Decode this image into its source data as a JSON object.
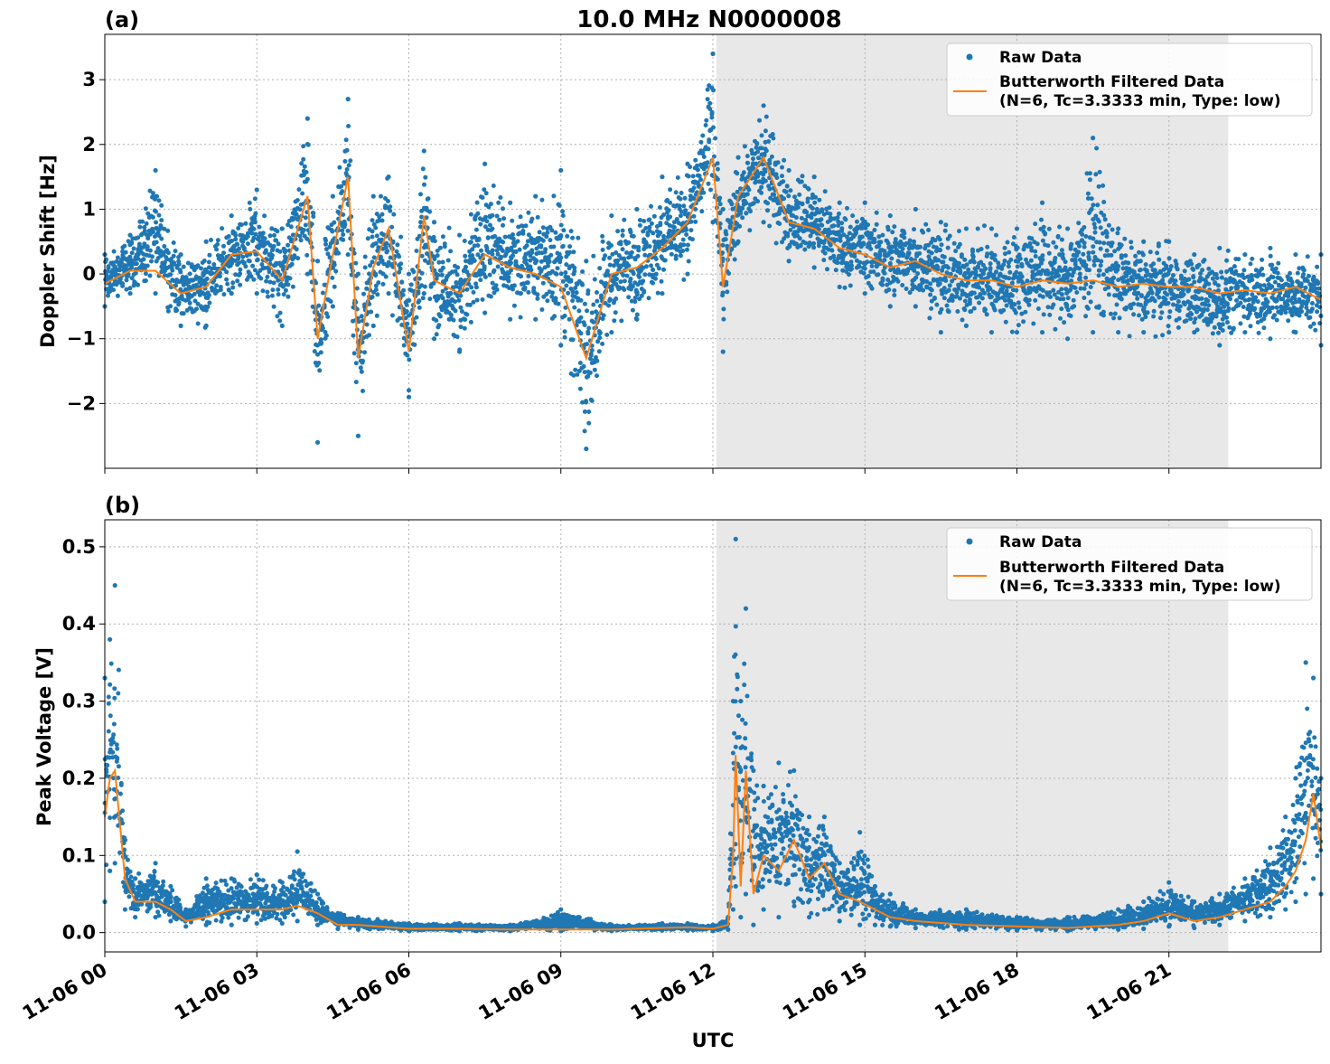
{
  "figure": {
    "title": "10.0 MHz N0000008",
    "xlabel": "UTC",
    "x_ticks": [
      "11-06 00",
      "11-06 03",
      "11-06 06",
      "11-06 09",
      "11-06 12",
      "11-06 15",
      "11-06 18",
      "11-06 21"
    ],
    "shaded_region_hours": [
      12.07,
      22.17
    ],
    "colors": {
      "raw": "#1f77b4",
      "filtered": "#ff7f0e",
      "shade": "#e8e8e8",
      "grid": "#b0b0b0"
    }
  },
  "legend": {
    "raw": "Raw Data",
    "filtered_line1": "Butterworth Filtered Data",
    "filtered_line2": "(N=6, Tc=3.3333 min, Type: low)"
  },
  "chart_data": [
    {
      "type": "scatter",
      "panel_label": "(a)",
      "ylabel": "Doppler Shift [Hz]",
      "x_unit": "hours UTC since 11-06 00",
      "xlim": [
        0,
        24
      ],
      "ylim": [
        -3.0,
        3.7
      ],
      "yticks": [
        -2,
        -1,
        0,
        1,
        2,
        3
      ],
      "ytick_labels": [
        "−2",
        "−1",
        "0",
        "1",
        "2",
        "3"
      ],
      "legend_position": "top-right",
      "grid": true,
      "series": [
        {
          "name": "Butterworth Filtered Data",
          "x": [
            0,
            0.5,
            1,
            1.5,
            2,
            2.5,
            3,
            3.5,
            4,
            4.2,
            4.5,
            4.8,
            5,
            5.3,
            5.6,
            6,
            6.3,
            6.5,
            7,
            7.5,
            8,
            8.5,
            9,
            9.5,
            10,
            10.5,
            11,
            11.5,
            12,
            12.2,
            12.5,
            13,
            13.5,
            14,
            14.5,
            15,
            15.5,
            16,
            16.5,
            17,
            17.5,
            18,
            18.5,
            19,
            19.5,
            20,
            20.5,
            21,
            21.5,
            22,
            22.5,
            23,
            23.5,
            24
          ],
          "y": [
            -0.15,
            0.05,
            0.05,
            -0.3,
            -0.2,
            0.3,
            0.35,
            -0.1,
            1.2,
            -1.0,
            0.3,
            1.5,
            -1.3,
            0.1,
            0.7,
            -1.2,
            0.9,
            -0.1,
            -0.3,
            0.3,
            0.1,
            0.0,
            -0.2,
            -1.3,
            0.0,
            0.1,
            0.4,
            0.8,
            1.8,
            -0.2,
            1.2,
            1.8,
            0.8,
            0.7,
            0.4,
            0.3,
            0.1,
            0.2,
            0.0,
            -0.1,
            -0.1,
            -0.2,
            -0.1,
            -0.15,
            -0.1,
            -0.2,
            -0.15,
            -0.2,
            -0.2,
            -0.3,
            -0.25,
            -0.3,
            -0.2,
            -0.4
          ]
        },
        {
          "name": "Raw Data",
          "x": [
            0,
            0.5,
            1,
            1.5,
            2,
            2.5,
            3,
            3.5,
            4,
            4.2,
            4.5,
            4.8,
            5,
            5.3,
            5.6,
            6,
            6.3,
            6.5,
            7,
            7.5,
            8,
            8.5,
            9,
            9.5,
            10,
            10.5,
            11,
            11.5,
            12,
            12.2,
            12.5,
            13,
            13.5,
            14,
            14.5,
            15,
            15.5,
            16,
            16.5,
            17,
            17.5,
            18,
            18.5,
            19,
            19.5,
            20,
            20.5,
            21,
            21.5,
            22,
            22.5,
            23,
            23.5,
            24
          ],
          "y_min": [
            -0.5,
            -0.3,
            -0.3,
            -0.8,
            -0.8,
            -0.3,
            -0.3,
            -0.8,
            0.0,
            -2.6,
            -0.5,
            0.3,
            -2.5,
            -0.8,
            -0.3,
            -1.9,
            -0.3,
            -1.0,
            -1.2,
            -0.6,
            -0.7,
            -0.7,
            -1.1,
            -2.7,
            -0.9,
            -0.7,
            -0.3,
            0.0,
            0.8,
            -1.2,
            0.5,
            0.8,
            0.2,
            0.1,
            -0.2,
            -0.3,
            -0.5,
            -0.5,
            -0.9,
            -0.8,
            -0.9,
            -0.9,
            -0.9,
            -1.0,
            -0.9,
            -0.9,
            -0.9,
            -0.9,
            -0.9,
            -1.1,
            -0.9,
            -1.0,
            -0.9,
            -1.1
          ],
          "y_max": [
            0.3,
            0.6,
            1.6,
            0.3,
            0.5,
            0.9,
            1.3,
            0.7,
            2.4,
            0.2,
            1.2,
            2.7,
            0.0,
            1.2,
            1.5,
            0.0,
            1.9,
            0.8,
            0.6,
            1.7,
            1.1,
            1.2,
            1.6,
            0.2,
            0.9,
            1.0,
            1.5,
            1.7,
            3.4,
            1.0,
            1.8,
            2.6,
            1.6,
            1.5,
            1.1,
            1.1,
            0.9,
            1.0,
            0.8,
            0.7,
            0.7,
            0.7,
            1.1,
            0.7,
            2.1,
            0.7,
            0.5,
            0.5,
            0.3,
            0.4,
            0.3,
            0.4,
            0.3,
            0.3
          ]
        }
      ]
    },
    {
      "type": "scatter",
      "panel_label": "(b)",
      "ylabel": "Peak Voltage [V]",
      "x_unit": "hours UTC since 11-06 00",
      "xlim": [
        0,
        24
      ],
      "ylim": [
        -0.025,
        0.535
      ],
      "yticks": [
        0.0,
        0.1,
        0.2,
        0.3,
        0.4,
        0.5
      ],
      "ytick_labels": [
        "0.0",
        "0.1",
        "0.2",
        "0.3",
        "0.4",
        "0.5"
      ],
      "legend_position": "top-right",
      "grid": true,
      "series": [
        {
          "name": "Butterworth Filtered Data",
          "x": [
            0,
            0.1,
            0.2,
            0.4,
            0.6,
            1,
            1.3,
            1.6,
            2,
            2.5,
            3,
            3.5,
            3.8,
            4.2,
            4.6,
            5,
            6,
            7,
            8,
            9,
            10,
            11,
            11.5,
            12,
            12.3,
            12.4,
            12.45,
            12.55,
            12.65,
            12.8,
            13,
            13.3,
            13.6,
            13.9,
            14.2,
            14.5,
            14.9,
            15.2,
            15.5,
            16,
            17,
            18,
            19,
            20,
            20.5,
            21,
            21.5,
            22,
            22.5,
            23,
            23.3,
            23.5,
            23.7,
            23.85,
            24
          ],
          "y": [
            0.15,
            0.2,
            0.21,
            0.07,
            0.04,
            0.04,
            0.03,
            0.015,
            0.02,
            0.03,
            0.03,
            0.03,
            0.035,
            0.025,
            0.01,
            0.01,
            0.005,
            0.005,
            0.004,
            0.004,
            0.004,
            0.006,
            0.007,
            0.005,
            0.01,
            0.1,
            0.23,
            0.06,
            0.21,
            0.05,
            0.1,
            0.08,
            0.12,
            0.07,
            0.09,
            0.05,
            0.04,
            0.03,
            0.02,
            0.015,
            0.01,
            0.008,
            0.006,
            0.01,
            0.015,
            0.025,
            0.015,
            0.02,
            0.03,
            0.04,
            0.06,
            0.08,
            0.12,
            0.18,
            0.11
          ]
        },
        {
          "name": "Raw Data",
          "x": [
            0,
            0.1,
            0.2,
            0.4,
            0.6,
            1,
            1.3,
            1.6,
            2,
            2.5,
            3,
            3.5,
            3.8,
            4.2,
            4.6,
            5,
            6,
            7,
            8,
            9,
            10,
            11,
            11.5,
            12,
            12.3,
            12.4,
            12.45,
            12.55,
            12.65,
            12.8,
            13,
            13.3,
            13.6,
            13.9,
            14.2,
            14.5,
            14.9,
            15.2,
            15.5,
            16,
            17,
            18,
            19,
            20,
            20.5,
            21,
            21.5,
            22,
            22.5,
            23,
            23.3,
            23.5,
            23.7,
            23.85,
            24
          ],
          "y_min": [
            0.04,
            0.08,
            0.09,
            0.03,
            0.02,
            0.02,
            0.015,
            0.008,
            0.01,
            0.01,
            0.012,
            0.012,
            0.015,
            0.01,
            0.005,
            0.004,
            0.002,
            0.002,
            0.002,
            0.002,
            0.002,
            0.003,
            0.003,
            0.002,
            0.004,
            0.03,
            0.06,
            0.02,
            0.05,
            0.01,
            0.03,
            0.02,
            0.04,
            0.02,
            0.03,
            0.015,
            0.01,
            0.01,
            0.008,
            0.006,
            0.004,
            0.003,
            0.002,
            0.004,
            0.005,
            0.008,
            0.006,
            0.01,
            0.015,
            0.02,
            0.03,
            0.04,
            0.05,
            0.07,
            0.05
          ],
          "y_max": [
            0.33,
            0.38,
            0.45,
            0.12,
            0.07,
            0.09,
            0.06,
            0.03,
            0.07,
            0.07,
            0.075,
            0.065,
            0.105,
            0.05,
            0.025,
            0.02,
            0.012,
            0.012,
            0.01,
            0.03,
            0.01,
            0.012,
            0.012,
            0.01,
            0.02,
            0.3,
            0.51,
            0.3,
            0.42,
            0.21,
            0.19,
            0.22,
            0.21,
            0.15,
            0.15,
            0.09,
            0.13,
            0.06,
            0.05,
            0.03,
            0.03,
            0.02,
            0.02,
            0.03,
            0.04,
            0.065,
            0.04,
            0.05,
            0.07,
            0.11,
            0.15,
            0.2,
            0.35,
            0.33,
            0.2
          ]
        }
      ]
    }
  ]
}
